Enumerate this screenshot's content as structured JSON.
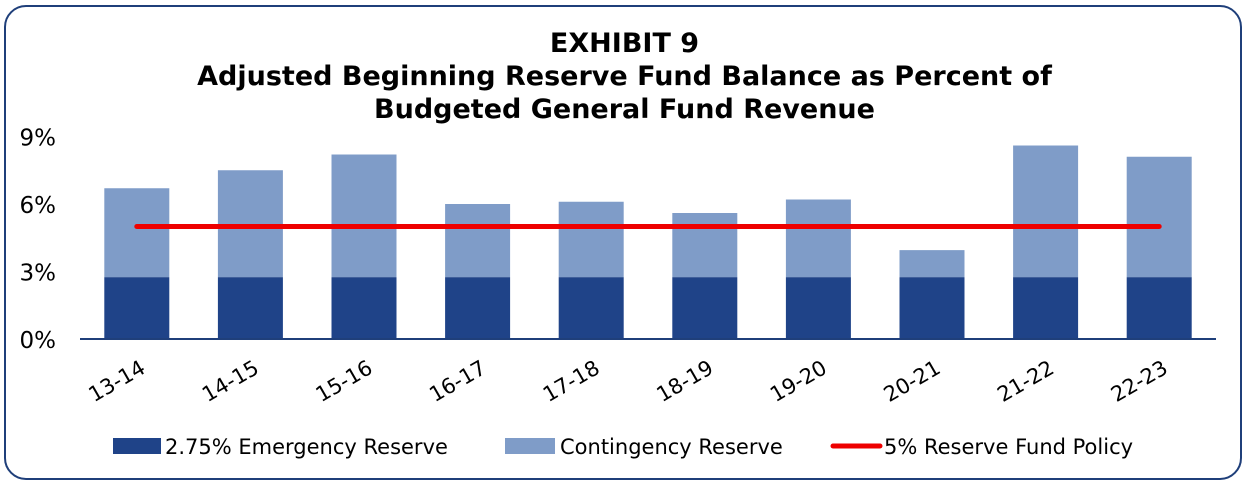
{
  "chart_data": {
    "type": "bar",
    "stacked": true,
    "title": "EXHIBIT 9",
    "subtitle_line1": "Adjusted Beginning Reserve Fund Balance as Percent of",
    "subtitle_line2": "Budgeted General Fund Revenue",
    "xlabel": "",
    "ylabel": "",
    "ylim": [
      0,
      9
    ],
    "yticks": [
      0,
      3,
      6,
      9
    ],
    "ytick_labels": [
      "0%",
      "3%",
      "6%",
      "9%"
    ],
    "categories": [
      "13-14",
      "14-15",
      "15-16",
      "16-17",
      "17-18",
      "18-19",
      "19-20",
      "20-21",
      "21-22",
      "22-23"
    ],
    "series": [
      {
        "name": "2.75% Emergency Reserve",
        "type": "bar",
        "color": "#1f4388",
        "values": [
          2.75,
          2.75,
          2.75,
          2.75,
          2.75,
          2.75,
          2.75,
          2.75,
          2.75,
          2.75
        ]
      },
      {
        "name": "Contingency Reserve",
        "type": "bar",
        "color": "#7f9cc8",
        "values": [
          3.95,
          4.75,
          5.45,
          3.25,
          3.35,
          2.85,
          3.45,
          1.2,
          5.85,
          5.35
        ]
      },
      {
        "name": "5% Reserve Fund Policy",
        "type": "line",
        "color": "#ee0000",
        "values": [
          5,
          5,
          5,
          5,
          5,
          5,
          5,
          5,
          5,
          5
        ]
      }
    ],
    "grid": false,
    "legend": "bottom"
  }
}
